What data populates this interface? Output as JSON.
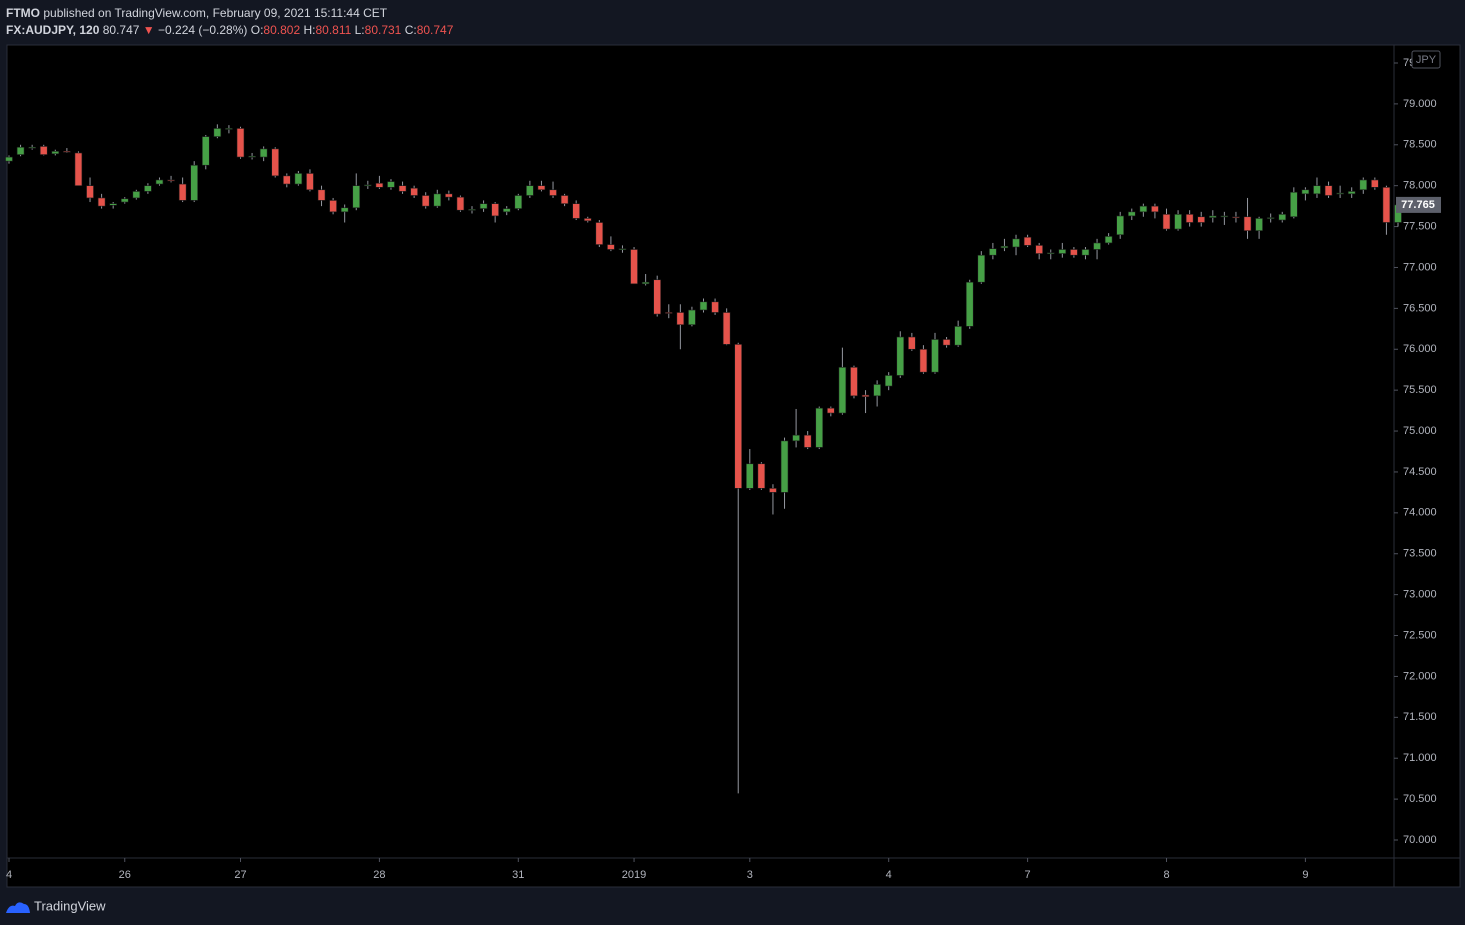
{
  "header": {
    "publisher": "FTMO",
    "published": "published on TradingView.com, February 09, 2021 15:11:44 CET",
    "symbol": "FX:AUDJPY, 120",
    "last": "80.747",
    "arrow": "▼",
    "change": "−0.224 (−0.28%)",
    "open_label": "O:",
    "open": "80.802",
    "high_label": "H:",
    "high": "80.811",
    "low_label": "L:",
    "low": "80.731",
    "close_label": "C:",
    "close": "80.747"
  },
  "chart_data": {
    "type": "candlestick",
    "currency": "JPY",
    "price_label": "77.765",
    "up_color": "#46a046",
    "down_color": "#e5534b",
    "ylim": [
      69.78,
      79.72
    ],
    "yticks": [
      {
        "value": 70,
        "label": "70.000"
      },
      {
        "value": 70.5,
        "label": "70.500"
      },
      {
        "value": 71,
        "label": "71.000"
      },
      {
        "value": 71.5,
        "label": "71.500"
      },
      {
        "value": 72,
        "label": "72.000"
      },
      {
        "value": 72.5,
        "label": "72.500"
      },
      {
        "value": 73,
        "label": "73.000"
      },
      {
        "value": 73.5,
        "label": "73.500"
      },
      {
        "value": 74,
        "label": "74.000"
      },
      {
        "value": 74.5,
        "label": "74.500"
      },
      {
        "value": 75,
        "label": "75.000"
      },
      {
        "value": 75.5,
        "label": "75.500"
      },
      {
        "value": 76,
        "label": "76.000"
      },
      {
        "value": 76.5,
        "label": "76.500"
      },
      {
        "value": 77,
        "label": "77.000"
      },
      {
        "value": 77.5,
        "label": "77.500"
      },
      {
        "value": 78,
        "label": "78.000"
      },
      {
        "value": 78.5,
        "label": "78.500"
      },
      {
        "value": 79,
        "label": "79.000"
      },
      {
        "value": 79.5,
        "label": "79.500"
      }
    ],
    "categories": [
      "4",
      null,
      null,
      null,
      null,
      null,
      null,
      null,
      null,
      null,
      "26",
      null,
      null,
      null,
      null,
      null,
      null,
      null,
      null,
      null,
      "27",
      null,
      null,
      null,
      null,
      null,
      null,
      null,
      null,
      null,
      null,
      null,
      "28",
      null,
      null,
      null,
      null,
      null,
      null,
      null,
      null,
      null,
      null,
      null,
      "31",
      null,
      null,
      null,
      null,
      null,
      null,
      null,
      null,
      null,
      "2019",
      null,
      null,
      null,
      null,
      null,
      null,
      null,
      null,
      null,
      "3",
      null,
      null,
      null,
      null,
      null,
      null,
      null,
      null,
      null,
      null,
      null,
      "4",
      null,
      null,
      null,
      null,
      null,
      null,
      null,
      null,
      null,
      null,
      null,
      "7",
      null,
      null,
      null,
      null,
      null,
      null,
      null,
      null,
      null,
      null,
      null,
      "8",
      null,
      null,
      null,
      null,
      null,
      null,
      null,
      null,
      null,
      null,
      null,
      "9",
      null,
      null,
      null,
      null,
      null,
      null,
      null,
      null
    ],
    "ohlc": [
      [
        78.3,
        78.37,
        78.27,
        78.35
      ],
      [
        78.38,
        78.5,
        78.36,
        78.47
      ],
      [
        78.46,
        78.5,
        78.44,
        78.47
      ],
      [
        78.48,
        78.5,
        78.37,
        78.38
      ],
      [
        78.39,
        78.44,
        78.37,
        78.42
      ],
      [
        78.42,
        78.46,
        78.4,
        78.41
      ],
      [
        78.4,
        78.42,
        78.0,
        78.0
      ],
      [
        78.0,
        78.1,
        77.8,
        77.85
      ],
      [
        77.85,
        77.9,
        77.72,
        77.75
      ],
      [
        77.76,
        77.8,
        77.72,
        77.78
      ],
      [
        77.8,
        77.86,
        77.78,
        77.84
      ],
      [
        77.85,
        77.95,
        77.83,
        77.93
      ],
      [
        77.93,
        78.03,
        77.9,
        78.0
      ],
      [
        78.02,
        78.1,
        78.0,
        78.07
      ],
      [
        78.07,
        78.12,
        78.04,
        78.06
      ],
      [
        78.02,
        78.1,
        77.8,
        77.82
      ],
      [
        77.82,
        78.3,
        77.8,
        78.25
      ],
      [
        78.25,
        78.62,
        78.2,
        78.6
      ],
      [
        78.6,
        78.75,
        78.58,
        78.7
      ],
      [
        78.69,
        78.74,
        78.64,
        78.7
      ],
      [
        78.7,
        78.72,
        78.33,
        78.35
      ],
      [
        78.35,
        78.4,
        78.32,
        78.36
      ],
      [
        78.35,
        78.48,
        78.3,
        78.45
      ],
      [
        78.45,
        78.47,
        78.1,
        78.12
      ],
      [
        78.12,
        78.15,
        77.98,
        78.02
      ],
      [
        78.02,
        78.18,
        78.0,
        78.15
      ],
      [
        78.15,
        78.2,
        77.93,
        77.95
      ],
      [
        77.95,
        78.0,
        77.75,
        77.82
      ],
      [
        77.82,
        77.85,
        77.65,
        77.68
      ],
      [
        77.68,
        77.77,
        77.55,
        77.73
      ],
      [
        77.73,
        78.15,
        77.7,
        78.0
      ],
      [
        78.0,
        78.06,
        77.96,
        78.01
      ],
      [
        78.03,
        78.12,
        77.96,
        77.98
      ],
      [
        77.98,
        78.08,
        77.95,
        78.05
      ],
      [
        78.0,
        78.05,
        77.9,
        77.93
      ],
      [
        77.97,
        78.0,
        77.85,
        77.88
      ],
      [
        77.88,
        77.92,
        77.72,
        77.75
      ],
      [
        77.75,
        77.95,
        77.73,
        77.9
      ],
      [
        77.9,
        77.94,
        77.82,
        77.86
      ],
      [
        77.86,
        77.88,
        77.68,
        77.7
      ],
      [
        77.7,
        77.75,
        77.66,
        77.71
      ],
      [
        77.72,
        77.82,
        77.68,
        77.78
      ],
      [
        77.78,
        77.8,
        77.55,
        77.63
      ],
      [
        77.68,
        77.75,
        77.64,
        77.72
      ],
      [
        77.72,
        77.9,
        77.7,
        77.88
      ],
      [
        77.88,
        78.06,
        77.85,
        78.0
      ],
      [
        78.0,
        78.06,
        77.93,
        77.95
      ],
      [
        77.95,
        78.05,
        77.85,
        77.88
      ],
      [
        77.88,
        77.9,
        77.75,
        77.78
      ],
      [
        77.78,
        77.82,
        77.58,
        77.6
      ],
      [
        77.6,
        77.62,
        77.55,
        77.57
      ],
      [
        77.55,
        77.58,
        77.25,
        77.28
      ],
      [
        77.28,
        77.38,
        77.2,
        77.22
      ],
      [
        77.22,
        77.27,
        77.18,
        77.23
      ],
      [
        77.22,
        77.25,
        76.8,
        76.8
      ],
      [
        76.8,
        76.92,
        76.78,
        76.82
      ],
      [
        76.85,
        76.9,
        76.4,
        76.43
      ],
      [
        76.45,
        76.55,
        76.38,
        76.44
      ],
      [
        76.45,
        76.55,
        76.0,
        76.3
      ],
      [
        76.3,
        76.52,
        76.28,
        76.48
      ],
      [
        76.48,
        76.62,
        76.45,
        76.58
      ],
      [
        76.58,
        76.62,
        76.42,
        76.45
      ],
      [
        76.45,
        76.5,
        76.05,
        76.06
      ],
      [
        76.06,
        76.08,
        70.57,
        74.3
      ],
      [
        74.3,
        74.78,
        74.28,
        74.6
      ],
      [
        74.6,
        74.62,
        74.28,
        74.3
      ],
      [
        74.3,
        74.35,
        73.98,
        74.25
      ],
      [
        74.25,
        74.92,
        74.05,
        74.88
      ],
      [
        74.88,
        75.27,
        74.8,
        74.95
      ],
      [
        74.95,
        75.0,
        74.78,
        74.8
      ],
      [
        74.8,
        75.3,
        74.78,
        75.28
      ],
      [
        75.28,
        75.3,
        75.18,
        75.22
      ],
      [
        75.22,
        76.02,
        75.2,
        75.78
      ],
      [
        75.78,
        75.8,
        75.4,
        75.43
      ],
      [
        75.44,
        75.5,
        75.22,
        75.42
      ],
      [
        75.43,
        75.62,
        75.3,
        75.57
      ],
      [
        75.55,
        75.72,
        75.5,
        75.68
      ],
      [
        75.68,
        76.22,
        75.65,
        76.15
      ],
      [
        76.15,
        76.2,
        75.98,
        76.0
      ],
      [
        76.0,
        76.05,
        75.7,
        75.72
      ],
      [
        75.72,
        76.2,
        75.7,
        76.12
      ],
      [
        76.12,
        76.15,
        76.02,
        76.05
      ],
      [
        76.05,
        76.35,
        76.03,
        76.28
      ],
      [
        76.28,
        76.85,
        76.25,
        76.82
      ],
      [
        76.82,
        77.2,
        76.8,
        77.15
      ],
      [
        77.15,
        77.3,
        77.1,
        77.23
      ],
      [
        77.24,
        77.35,
        77.2,
        77.26
      ],
      [
        77.25,
        77.4,
        77.15,
        77.35
      ],
      [
        77.37,
        77.4,
        77.25,
        77.27
      ],
      [
        77.27,
        77.3,
        77.1,
        77.17
      ],
      [
        77.17,
        77.22,
        77.1,
        77.18
      ],
      [
        77.17,
        77.3,
        77.12,
        77.22
      ],
      [
        77.22,
        77.25,
        77.12,
        77.15
      ],
      [
        77.15,
        77.25,
        77.1,
        77.22
      ],
      [
        77.22,
        77.35,
        77.1,
        77.3
      ],
      [
        77.3,
        77.42,
        77.28,
        77.38
      ],
      [
        77.4,
        77.68,
        77.35,
        77.63
      ],
      [
        77.63,
        77.72,
        77.58,
        77.68
      ],
      [
        77.68,
        77.78,
        77.62,
        77.75
      ],
      [
        77.75,
        77.78,
        77.6,
        77.68
      ],
      [
        77.65,
        77.72,
        77.45,
        77.47
      ],
      [
        77.47,
        77.7,
        77.45,
        77.65
      ],
      [
        77.65,
        77.7,
        77.5,
        77.55
      ],
      [
        77.62,
        77.68,
        77.5,
        77.55
      ],
      [
        77.61,
        77.7,
        77.55,
        77.63
      ],
      [
        77.62,
        77.68,
        77.52,
        77.63
      ],
      [
        77.62,
        77.68,
        77.55,
        77.61
      ],
      [
        77.62,
        77.85,
        77.35,
        77.45
      ],
      [
        77.45,
        77.62,
        77.35,
        77.6
      ],
      [
        77.6,
        77.66,
        77.55,
        77.61
      ],
      [
        77.58,
        77.68,
        77.55,
        77.65
      ],
      [
        77.62,
        77.98,
        77.6,
        77.92
      ],
      [
        77.9,
        77.98,
        77.82,
        77.95
      ],
      [
        77.9,
        78.1,
        77.85,
        78.0
      ],
      [
        78.0,
        78.05,
        77.85,
        77.88
      ],
      [
        77.9,
        78.0,
        77.85,
        77.91
      ],
      [
        77.9,
        77.98,
        77.85,
        77.93
      ],
      [
        77.95,
        78.1,
        77.9,
        78.07
      ],
      [
        78.07,
        78.1,
        77.95,
        77.98
      ],
      [
        77.98,
        78.0,
        77.4,
        77.55
      ],
      [
        77.55,
        77.8,
        77.5,
        77.765
      ]
    ]
  },
  "footer": {
    "brand": "TradingView"
  }
}
